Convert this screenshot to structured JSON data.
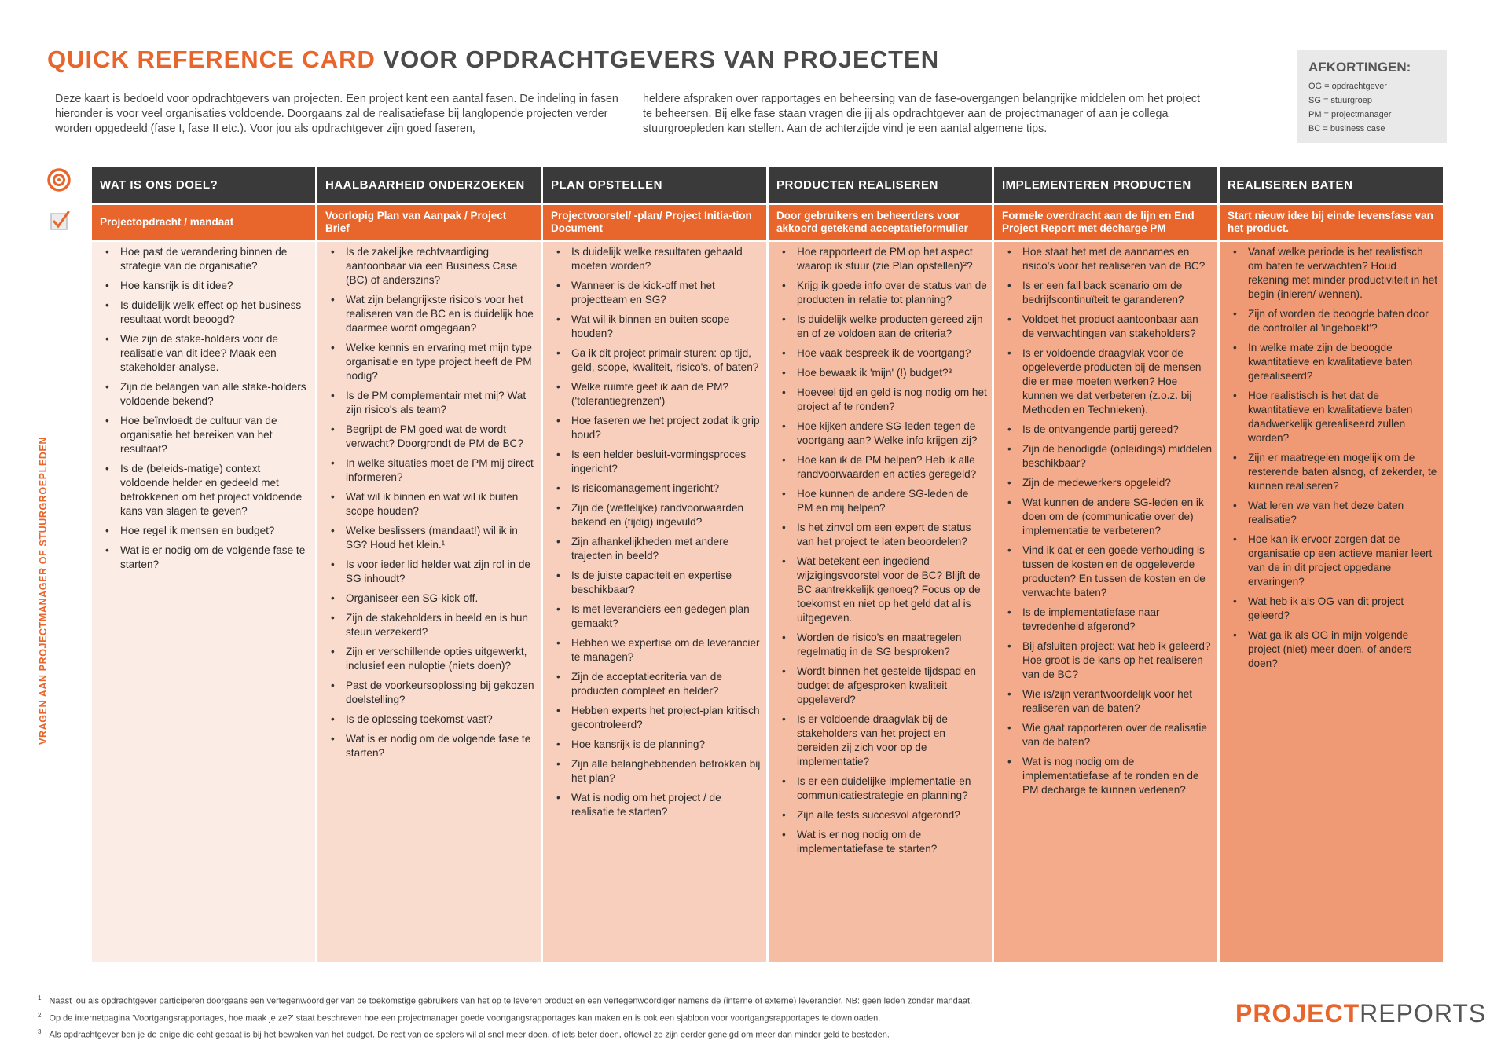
{
  "header": {
    "title_accent": "QUICK REFERENCE CARD",
    "title_rest": " VOOR OPDRACHTGEVERS VAN PROJECTEN",
    "intro_col1": "Deze kaart is bedoeld voor opdrachtgevers van projecten. Een project kent een aantal fasen. De indeling in fasen hieronder is voor veel organisaties voldoende. Doorgaans zal de realisatiefase bij langlopende projecten verder worden opgedeeld (fase I, fase II etc.). Voor jou als opdrachtgever zijn goed faseren,",
    "intro_col2": "heldere afspraken over rapportages en beheersing van de fase-overgangen belangrijke middelen om het project te beheersen. Bij elke fase staan vragen die jij als opdrachtgever aan de projectmanager of aan je collega stuurgroepleden kan stellen. Aan de achterzijde vind je een aantal algemene tips."
  },
  "abbreviations": {
    "title": "AFKORTINGEN:",
    "items": [
      "OG = opdrachtgever",
      "SG = stuurgroep",
      "PM = projectmanager",
      "BC = business case"
    ]
  },
  "side_label": "VRAGEN AAN PROJECTMANAGER OF STUURGROEPLEDEN",
  "icons": {
    "goal": "target-icon",
    "result": "checkbox-icon"
  },
  "colors": {
    "accent": "#e8652c",
    "header_dark": "#3a3a3a",
    "col_backgrounds": [
      "#fcecE6",
      "#fadccf",
      "#f8cfbd",
      "#f6bda5",
      "#f3ab8c",
      "#f09a75"
    ]
  },
  "columns": [
    {
      "head": "WAT IS ONS DOEL?",
      "sub": "Projectopdracht / mandaat",
      "items": [
        "Hoe past de verandering binnen de strategie van de organisatie?",
        "Hoe kansrijk is dit idee?",
        "Is duidelijk welk effect op het business resultaat wordt beoogd?",
        "Wie zijn de stake-holders voor de realisatie van dit idee? Maak een stakeholder-analyse.",
        "Zijn de belangen van alle stake-holders voldoende bekend?",
        "Hoe beïnvloedt de cultuur van de organisatie het bereiken van het resultaat?",
        "Is de (beleids-matige) context voldoende helder en gedeeld met betrokkenen om het project voldoende kans van slagen te geven?",
        "Hoe regel ik mensen en budget?",
        "Wat is er nodig om de volgende fase te starten?"
      ]
    },
    {
      "head": "HAALBAARHEID ONDERZOEKEN",
      "sub": "Voorlopig Plan van Aanpak / Project Brief",
      "items": [
        "Is de zakelijke rechtvaardiging aantoonbaar via een Business Case (BC) of anderszins?",
        "Wat zijn belangrijkste risico's voor het realiseren van de BC en is duidelijk hoe daarmee wordt omgegaan?",
        "Welke kennis en ervaring met mijn type organisatie en type project heeft de PM nodig?",
        "Is de PM complementair met mij? Wat zijn risico's als team?",
        "Begrijpt de PM goed wat de wordt verwacht? Doorgrondt de PM de BC?",
        "In welke situaties moet de PM mij direct informeren?",
        "Wat wil ik binnen en wat wil ik buiten scope houden?",
        "Welke beslissers (mandaat!) wil ik in SG? Houd het klein.¹",
        "Is voor ieder lid helder wat zijn rol in de SG inhoudt?",
        "Organiseer een SG-kick-off.",
        "Zijn de stakeholders in beeld en is hun steun verzekerd?",
        "Zijn er verschillende opties uitgewerkt, inclusief een nuloptie (niets doen)?",
        "Past de voorkeursoplossing bij gekozen doelstelling?",
        "Is de oplossing toekomst-vast?",
        "Wat is er nodig om de volgende fase te starten?"
      ]
    },
    {
      "head": "PLAN OPSTELLEN",
      "sub": "Projectvoorstel/ -plan/ Project Initia-tion Document",
      "items": [
        "Is duidelijk welke resultaten gehaald moeten worden?",
        "Wanneer is de kick-off met het projectteam en SG?",
        "Wat wil ik binnen en buiten scope houden?",
        "Ga ik dit project primair sturen: op tijd, geld, scope, kwaliteit, risico's, of baten?",
        "Welke ruimte geef ik aan de PM? ('tolerantiegrenzen')",
        "Hoe faseren we het project zodat ik grip houd?",
        "Is een helder besluit-vormingsproces ingericht?",
        "Is risicomanagement ingericht?",
        "Zijn de (wettelijke) randvoorwaarden bekend en (tijdig) ingevuld?",
        "Zijn afhankelijkheden met andere trajecten in beeld?",
        "Is de juiste capaciteit en expertise beschikbaar?",
        "Is met leveranciers een gedegen plan gemaakt?",
        "Hebben we expertise om de leverancier te managen?",
        "Zijn de acceptatiecriteria van de producten compleet en helder?",
        "Hebben experts het project-plan kritisch gecontroleerd?",
        "Hoe kansrijk is de planning?",
        "Zijn alle belanghebbenden betrokken bij het plan?",
        "Wat is nodig om het project / de realisatie te starten?"
      ]
    },
    {
      "head": "PRODUCTEN REALISEREN",
      "sub": "Door gebruikers en beheerders voor akkoord getekend acceptatieformulier",
      "items": [
        "Hoe rapporteert de PM op het aspect waarop ik stuur (zie Plan opstellen)²?",
        "Krijg ik goede info over de status van de producten in relatie tot planning?",
        "Is duidelijk welke producten gereed zijn en of ze voldoen aan de criteria?",
        "Hoe vaak bespreek ik de voortgang?",
        "Hoe bewaak ik 'mijn' (!) budget?³",
        "Hoeveel tijd en geld is nog nodig om het project af te ronden?",
        "Hoe kijken andere SG-leden tegen de voortgang aan? Welke info krijgen zij?",
        "Hoe kan ik de PM helpen? Heb ik alle randvoorwaarden en acties geregeld?",
        "Hoe kunnen de andere SG-leden de PM en mij helpen?",
        "Is het zinvol om een expert de status van het project te laten beoordelen?",
        "Wat betekent een ingediend wijzigingsvoorstel voor de BC? Blijft de BC aantrekkelijk genoeg? Focus op de toekomst en niet op het geld dat al is uitgegeven.",
        "Worden de risico's en maatregelen regelmatig in de SG besproken?",
        "Wordt binnen het gestelde tijdspad en budget de afgesproken kwaliteit opgeleverd?",
        "Is er voldoende draagvlak bij de stakeholders van het project en bereiden zij zich voor op de implementatie?",
        "Is er een duidelijke implementatie-en communicatiestrategie en planning?",
        "Zijn alle tests succesvol afgerond?",
        "Wat is er nog nodig om de implementatiefase te starten?"
      ]
    },
    {
      "head": "IMPLEMENTEREN PRODUCTEN",
      "sub": "Formele overdracht aan de lijn en End Project Report met décharge PM",
      "items": [
        "Hoe staat het met de aannames en risico's voor het realiseren van de BC?",
        "Is er een fall back scenario om de bedrijfscontinuïteit te garanderen?",
        "Voldoet het product aantoonbaar aan de verwachtingen van stakeholders?",
        "Is er voldoende draagvlak voor de opgeleverde producten bij de mensen die er mee moeten werken? Hoe kunnen we dat verbeteren (z.o.z. bij Methoden en Technieken).",
        "Is de ontvangende partij gereed?",
        "Zijn de benodigde (opleidings) middelen beschikbaar?",
        "Zijn de medewerkers opgeleid?",
        "Wat kunnen de andere SG-leden en ik doen om de (communicatie over de) implementatie te verbeteren?",
        "Vind ik dat er een goede verhouding is tussen de kosten en de opgeleverde producten? En tussen de kosten en de verwachte baten?",
        "Is de implementatiefase naar tevredenheid afgerond?",
        "Bij afsluiten project: wat heb ik geleerd? Hoe groot is de kans op het realiseren van de BC?",
        "Wie is/zijn verantwoordelijk voor het realiseren van de baten?",
        "Wie gaat rapporteren over de realisatie van de baten?",
        "Wat is nog nodig om de implementatiefase af te ronden en de PM decharge te kunnen verlenen?"
      ]
    },
    {
      "head": "REALISEREN BATEN",
      "sub": "Start nieuw idee bij einde levensfase van het product.",
      "items": [
        "Vanaf welke periode is het realistisch om baten te verwachten? Houd rekening met minder productiviteit in het begin (inleren/ wennen).",
        "Zijn of worden de beoogde baten door de controller al 'ingeboekt'?",
        "In welke mate zijn de beoogde kwantitatieve en kwalitatieve baten gerealiseerd?",
        "Hoe realistisch is het dat de kwantitatieve en kwalitatieve baten daadwerkelijk gerealiseerd zullen worden?",
        "Zijn er maatregelen mogelijk om de resterende baten alsnog, of zekerder, te kunnen realiseren?",
        "Wat leren we van het deze baten realisatie?",
        "Hoe kan ik ervoor zorgen dat de organisatie op een actieve manier leert van de in dit project opgedane ervaringen?",
        "Wat heb ik als OG van dit project geleerd?",
        "Wat ga ik als OG in mijn volgende project (niet) meer doen, of anders doen?"
      ]
    }
  ],
  "footnotes": [
    {
      "num": "1",
      "text": "Naast jou als opdrachtgever participeren doorgaans een vertegenwoordiger van de toekomstige gebruikers van het op te leveren product en een vertegenwoordiger namens de (interne of externe) leverancier. NB: geen leden zonder mandaat."
    },
    {
      "num": "2",
      "text": "Op de internetpagina 'Voortgangsrapportages, hoe maak je ze?' staat beschreven hoe een projectmanager goede voortgangsrapportages kan maken en is ook een sjabloon voor voortgangsrapportages te downloaden."
    },
    {
      "num": "3",
      "text": "Als opdrachtgever ben je de enige die echt gebaat is bij het bewaken van het budget. De rest van de spelers wil al snel meer doen, of iets beter doen, oftewel ze zijn eerder geneigd om meer dan minder geld te besteden."
    }
  ],
  "logo": {
    "part1": "PROJECT",
    "part2": "REPORTS"
  }
}
